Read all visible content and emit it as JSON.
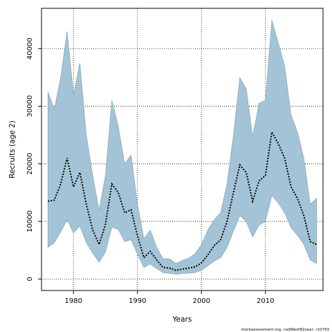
{
  "chart_data": {
    "type": "area",
    "xlabel": "Years",
    "ylabel": "Recruits (age 2)",
    "xlim": [
      1975,
      2019
    ],
    "ylim": [
      -2000,
      47000
    ],
    "x_ticks": [
      1980,
      1990,
      2000,
      2010
    ],
    "y_ticks": [
      0,
      10000,
      20000,
      30000,
      40000
    ],
    "grid": true,
    "colors": {
      "band": "#a3c4d6",
      "band_edge": "#7f9aa8",
      "line": "#000000"
    },
    "x": [
      1976,
      1977,
      1978,
      1979,
      1980,
      1981,
      1982,
      1983,
      1984,
      1985,
      1986,
      1987,
      1988,
      1989,
      1990,
      1991,
      1992,
      1993,
      1994,
      1995,
      1996,
      1997,
      1998,
      1999,
      2000,
      2001,
      2002,
      2003,
      2004,
      2005,
      2006,
      2007,
      2008,
      2009,
      2010,
      2011,
      2012,
      2013,
      2014,
      2015,
      2016,
      2017,
      2018
    ],
    "series": [
      {
        "role": "estimate",
        "values": [
          13500,
          13700,
          16500,
          21000,
          16000,
          18500,
          13000,
          8500,
          6000,
          9500,
          16500,
          15000,
          11500,
          12000,
          7500,
          3700,
          4800,
          3300,
          2000,
          1900,
          1500,
          1700,
          1900,
          2100,
          2800,
          4200,
          5800,
          6800,
          10000,
          15000,
          19800,
          18500,
          13500,
          17000,
          18000,
          25500,
          23500,
          21000,
          16000,
          14000,
          11000,
          6500,
          6000
        ]
      },
      {
        "role": "upper",
        "values": [
          32500,
          29500,
          35000,
          43000,
          32000,
          37500,
          25000,
          18000,
          12000,
          18000,
          31000,
          26500,
          20000,
          21500,
          13000,
          7000,
          8500,
          5500,
          3500,
          3500,
          2700,
          3200,
          3600,
          4400,
          6000,
          8500,
          10300,
          11500,
          16500,
          25000,
          35000,
          33000,
          24700,
          30500,
          31000,
          45000,
          41000,
          37000,
          28500,
          25500,
          21000,
          13000,
          14000
        ]
      },
      {
        "role": "lower",
        "values": [
          5500,
          6300,
          8200,
          10300,
          8000,
          9200,
          6300,
          4500,
          2900,
          4700,
          9000,
          8600,
          6500,
          6800,
          4300,
          2000,
          2600,
          1800,
          1100,
          1000,
          800,
          950,
          1000,
          1100,
          1500,
          2300,
          3100,
          3700,
          5500,
          8300,
          11000,
          10000,
          7300,
          9300,
          10000,
          14500,
          13200,
          11500,
          8900,
          7600,
          6000,
          3300,
          2700
        ]
      }
    ]
  },
  "footer": "stockassessment.org, codWestB2year, r10793"
}
